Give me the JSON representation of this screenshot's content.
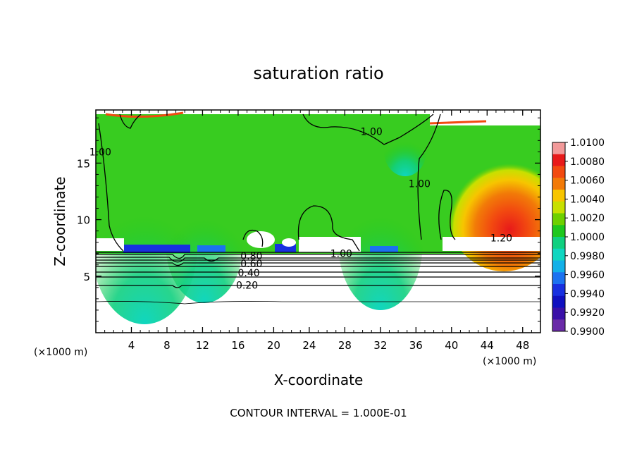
{
  "chart_data": {
    "type": "heatmap",
    "title": "saturation ratio",
    "xlabel": "X-coordinate",
    "ylabel": "Z-coordinate",
    "x_unit": "(×1000 m)",
    "xlim": [
      0,
      50
    ],
    "ylim": [
      0,
      19.7
    ],
    "x_ticks": [
      4,
      8,
      12,
      16,
      20,
      24,
      28,
      32,
      36,
      40,
      44,
      48
    ],
    "y_ticks": [
      5,
      10,
      15
    ],
    "colorbar": {
      "ticks": [
        "1.0100",
        "1.0080",
        "1.0060",
        "1.0040",
        "1.0020",
        "1.0000",
        "0.9980",
        "0.9960",
        "0.9940",
        "0.9920",
        "0.9900"
      ],
      "colors": [
        "#f29a9a",
        "#e81a1a",
        "#f24a10",
        "#f27a08",
        "#f7c500",
        "#c8e000",
        "#6ed000",
        "#1ec81e",
        "#10d080",
        "#10d6c0",
        "#12b0e8",
        "#1c72f0",
        "#1830e0",
        "#1010c0",
        "#3a10a8",
        "#6a2aa8"
      ]
    },
    "contour_labels": [
      {
        "text": "1.00",
        "x": 31,
        "y": 17.8
      },
      {
        "text": "1.00",
        "x": 0.5,
        "y": 16.0
      },
      {
        "text": "1.00",
        "x": 36.4,
        "y": 13.2
      },
      {
        "text": "1.20",
        "x": 45.6,
        "y": 8.4
      },
      {
        "text": "1.00",
        "x": 27.6,
        "y": 7.0
      },
      {
        "text": "0.80",
        "x": 17.5,
        "y": 6.8
      },
      {
        "text": "0.60",
        "x": 17.5,
        "y": 6.1
      },
      {
        "text": "0.40",
        "x": 17.2,
        "y": 5.3
      },
      {
        "text": "0.20",
        "x": 17.0,
        "y": 4.2
      }
    ],
    "footer": "CONTOUR INTERVAL = 1.000E-01"
  }
}
